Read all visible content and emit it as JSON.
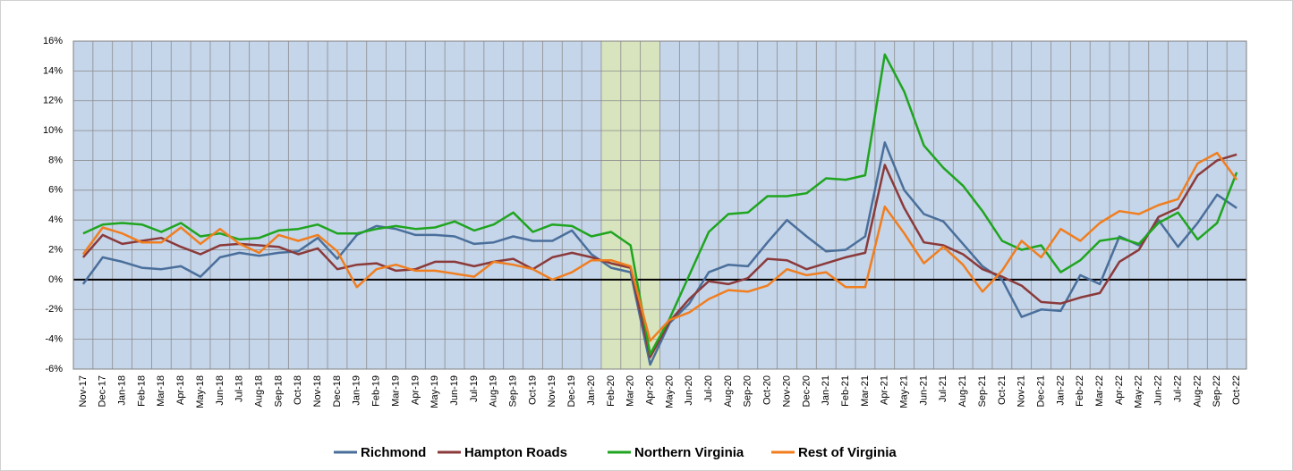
{
  "chart_data": {
    "type": "line",
    "categories": [
      "Nov-17",
      "Dec-17",
      "Jan-18",
      "Feb-18",
      "Mar-18",
      "Apr-18",
      "May-18",
      "Jun-18",
      "Jul-18",
      "Aug-18",
      "Sep-18",
      "Oct-18",
      "Nov-18",
      "Dec-18",
      "Jan-19",
      "Feb-19",
      "Mar-19",
      "Apr-19",
      "May-19",
      "Jun-19",
      "Jul-19",
      "Aug-19",
      "Sep-19",
      "Oct-19",
      "Nov-19",
      "Dec-19",
      "Jan-20",
      "Feb-20",
      "Mar-20",
      "Apr-20",
      "May-20",
      "Jun-20",
      "Jul-20",
      "Aug-20",
      "Sep-20",
      "Oct-20",
      "Nov-20",
      "Dec-20",
      "Jan-21",
      "Feb-21",
      "Mar-21",
      "Apr-21",
      "May-21",
      "Jun-21",
      "Jul-21",
      "Aug-21",
      "Sep-21",
      "Oct-21",
      "Nov-21",
      "Dec-21",
      "Jan-22",
      "Feb-22",
      "Mar-22",
      "Apr-22",
      "May-22",
      "Jun-22",
      "Jul-22",
      "Aug-22",
      "Sep-22",
      "Oct-22"
    ],
    "series": [
      {
        "name": "Richmond",
        "color": "#4a6f9b",
        "values": [
          -0.3,
          1.5,
          1.2,
          0.8,
          0.7,
          0.9,
          0.2,
          1.5,
          1.8,
          1.6,
          1.8,
          1.9,
          2.8,
          1.4,
          3.0,
          3.6,
          3.4,
          3.0,
          3.0,
          2.9,
          2.4,
          2.5,
          2.9,
          2.6,
          2.6,
          3.3,
          1.7,
          0.8,
          0.5,
          -5.7,
          -2.9,
          -1.6,
          0.5,
          1.0,
          0.9,
          2.5,
          4.0,
          2.9,
          1.9,
          2.0,
          2.9,
          9.2,
          6.0,
          4.4,
          3.9,
          2.4,
          0.9,
          0.0,
          -2.5,
          -2.0,
          -2.1,
          0.3,
          -0.3,
          2.9,
          2.3,
          4.0,
          2.2,
          3.8,
          5.7,
          4.8
        ]
      },
      {
        "name": "Hampton Roads",
        "color": "#8b3a3a",
        "values": [
          1.5,
          3.0,
          2.4,
          2.6,
          2.8,
          2.2,
          1.7,
          2.3,
          2.4,
          2.3,
          2.2,
          1.7,
          2.1,
          0.7,
          1.0,
          1.1,
          0.6,
          0.7,
          1.2,
          1.2,
          0.9,
          1.2,
          1.4,
          0.7,
          1.5,
          1.8,
          1.5,
          1.1,
          0.8,
          -5.2,
          -2.8,
          -1.3,
          -0.1,
          -0.3,
          0.1,
          1.4,
          1.3,
          0.7,
          1.1,
          1.5,
          1.8,
          7.7,
          4.8,
          2.5,
          2.3,
          1.7,
          0.7,
          0.2,
          -0.4,
          -1.5,
          -1.6,
          -1.2,
          -0.9,
          1.2,
          2.0,
          4.2,
          4.8,
          7.0,
          8.0,
          8.4
        ]
      },
      {
        "name": "Northern Virginia",
        "color": "#1fa51f",
        "values": [
          3.1,
          3.7,
          3.8,
          3.7,
          3.2,
          3.8,
          2.9,
          3.1,
          2.7,
          2.8,
          3.3,
          3.4,
          3.7,
          3.1,
          3.1,
          3.4,
          3.6,
          3.4,
          3.5,
          3.9,
          3.3,
          3.7,
          4.5,
          3.2,
          3.7,
          3.6,
          2.9,
          3.2,
          2.3,
          -5.0,
          -2.6,
          0.3,
          3.2,
          4.4,
          4.5,
          5.6,
          5.6,
          5.8,
          6.8,
          6.7,
          7.0,
          15.1,
          12.6,
          9.0,
          7.5,
          6.3,
          4.6,
          2.6,
          2.0,
          2.3,
          0.5,
          1.3,
          2.6,
          2.8,
          2.4,
          3.8,
          4.5,
          2.7,
          3.8,
          7.2
        ]
      },
      {
        "name": "Rest of Virginia",
        "color": "#f07e1f",
        "values": [
          1.7,
          3.5,
          3.1,
          2.5,
          2.5,
          3.5,
          2.4,
          3.4,
          2.4,
          1.8,
          3.0,
          2.6,
          3.0,
          1.9,
          -0.5,
          0.7,
          1.0,
          0.6,
          0.6,
          0.4,
          0.2,
          1.2,
          1.0,
          0.7,
          0.0,
          0.5,
          1.3,
          1.3,
          0.9,
          -4.1,
          -2.7,
          -2.2,
          -1.3,
          -0.7,
          -0.8,
          -0.4,
          0.7,
          0.3,
          0.5,
          -0.5,
          -0.5,
          4.9,
          3.1,
          1.1,
          2.2,
          1.0,
          -0.8,
          0.6,
          2.6,
          1.5,
          3.4,
          2.6,
          3.8,
          4.6,
          4.4,
          5.0,
          5.4,
          7.8,
          8.5,
          6.7
        ]
      }
    ],
    "ylim": [
      -6,
      16
    ],
    "yticks": [
      {
        "value": -6,
        "label": "-6%"
      },
      {
        "value": -4,
        "label": "-4%"
      },
      {
        "value": -2,
        "label": "-2%"
      },
      {
        "value": 0,
        "label": "0%"
      },
      {
        "value": 2,
        "label": "2%"
      },
      {
        "value": 4,
        "label": "4%"
      },
      {
        "value": 6,
        "label": "6%"
      },
      {
        "value": 8,
        "label": "8%"
      },
      {
        "value": 10,
        "label": "10%"
      },
      {
        "value": 12,
        "label": "12%"
      },
      {
        "value": 14,
        "label": "14%"
      },
      {
        "value": 16,
        "label": "16%"
      }
    ],
    "grid": true,
    "plot_color": "#c5d5ea",
    "shaded": {
      "from": "Feb-20",
      "to": "Apr-20",
      "color": "#d7e4bd"
    },
    "legend": "bottom"
  }
}
